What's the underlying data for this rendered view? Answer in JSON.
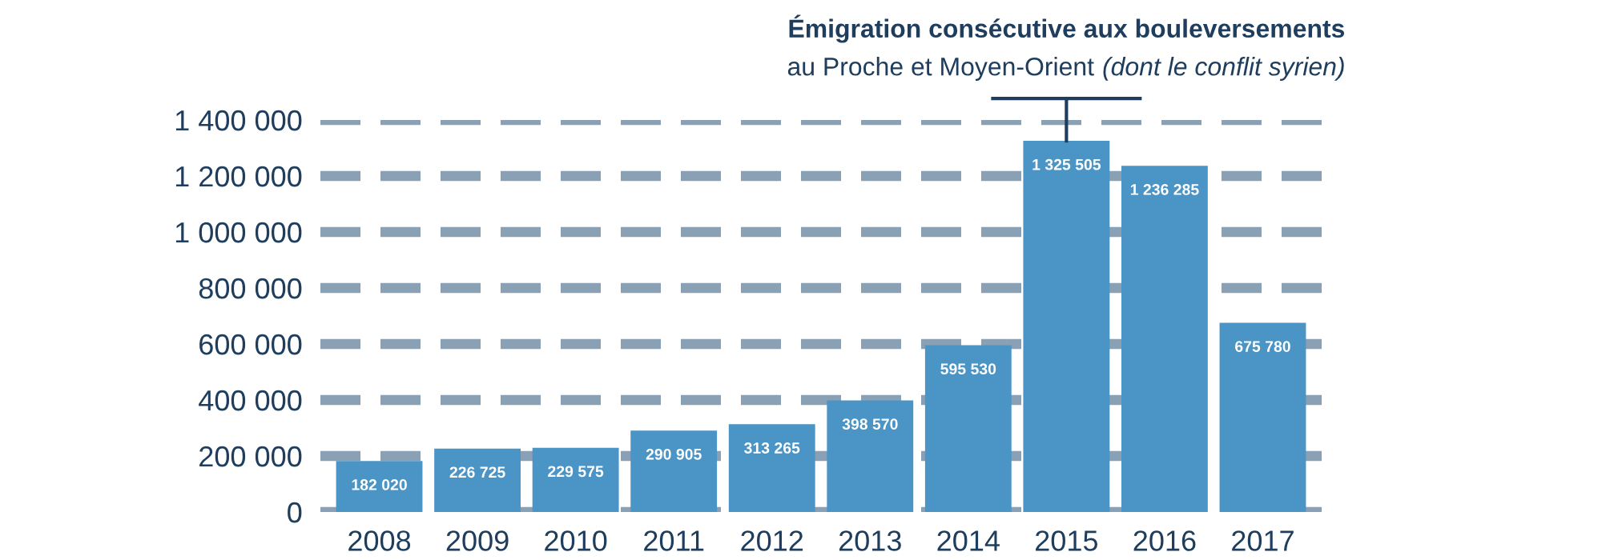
{
  "chart_data": {
    "type": "bar",
    "categories": [
      "2008",
      "2009",
      "2010",
      "2011",
      "2012",
      "2013",
      "2014",
      "2015",
      "2016",
      "2017"
    ],
    "values": [
      182020,
      226725,
      229575,
      290905,
      313265,
      398570,
      595530,
      1325505,
      1236285,
      675780
    ],
    "color": "#4a94c6",
    "ylim": [
      0,
      1400000
    ],
    "yticks": [
      {
        "value": 0,
        "label": "0"
      },
      {
        "value": 200000,
        "label": "200 000"
      },
      {
        "value": 400000,
        "label": "400 000"
      },
      {
        "value": 600000,
        "label": "600 000"
      },
      {
        "value": 800000,
        "label": "800 000"
      },
      {
        "value": 1000000,
        "label": "1 000 000"
      },
      {
        "value": 1200000,
        "label": "1 200 000"
      },
      {
        "value": 1400000,
        "label": "1 400 000"
      }
    ],
    "grid": "y",
    "data_labels": true,
    "value_labels": [
      "182 020",
      "226 725",
      "229 575",
      "290 905",
      "313 265",
      "398 570",
      "595 530",
      "1 325 505",
      "1 236 285",
      "675 780"
    ],
    "annotations": [
      "Émigration consécutive aux bouleversements",
      "au Proche et Moyen-Orient ",
      "(dont le conflit syrien)"
    ]
  }
}
